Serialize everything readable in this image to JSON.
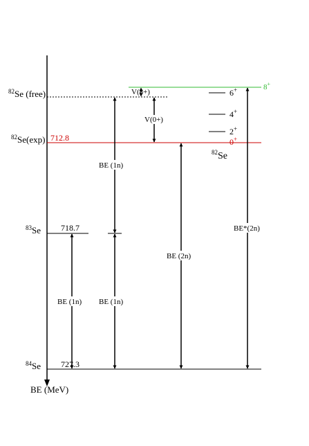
{
  "colors": {
    "ink": "#000000",
    "exp_level": "#cc0000",
    "eight_plus": "#33bb33"
  },
  "axis": {
    "label": "BE (MeV)",
    "direction_icon": "arrow-down-icon"
  },
  "levels": {
    "free": {
      "mass": "82",
      "name": "Se (free)"
    },
    "exp": {
      "mass": "82",
      "name": "Se(exp)",
      "value": "712.8"
    },
    "se83": {
      "mass": "83",
      "name": "Se",
      "value": "718.7"
    },
    "se84": {
      "mass": "84",
      "name": "Se",
      "value": "727.3"
    }
  },
  "spectrum": {
    "nucleus_mass": "82",
    "nucleus_name": "Se",
    "states": [
      {
        "j": "0",
        "parity": "+"
      },
      {
        "j": "2",
        "parity": "+"
      },
      {
        "j": "4",
        "parity": "+"
      },
      {
        "j": "6",
        "parity": "+"
      },
      {
        "j": "8",
        "parity": "+"
      }
    ]
  },
  "arrows": {
    "v8": "V(8+)",
    "v0": "V(0+)",
    "be1n_upper": "BE (1n)",
    "be1n_lower_left": "BE (1n)",
    "be1n_lower_mid": "BE (1n)",
    "be2n": "BE (2n)",
    "be2n_star": "BE*(2n)"
  }
}
